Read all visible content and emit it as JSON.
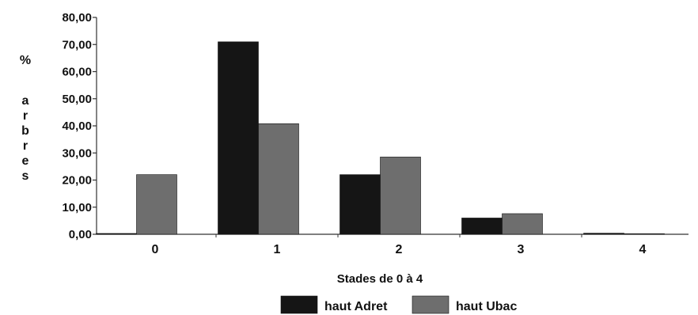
{
  "chart_data": {
    "type": "bar",
    "categories": [
      "0",
      "1",
      "2",
      "3",
      "4"
    ],
    "series": [
      {
        "name": "haut Adret",
        "values": [
          0.3,
          71.0,
          22.0,
          6.0,
          0.4
        ],
        "color": "#151515"
      },
      {
        "name": "haut Ubac",
        "values": [
          22.0,
          40.8,
          28.5,
          7.6,
          0.0
        ],
        "color": "#6e6e6e"
      }
    ],
    "ylim": [
      0,
      80
    ],
    "yticks": [
      "0,00",
      "10,00",
      "20,00",
      "30,00",
      "40,00",
      "50,00",
      "60,00",
      "70,00",
      "80,00"
    ],
    "ylabel": {
      "symbol": "%",
      "word": "arbres"
    },
    "xlabel": "Stades de 0 à 4",
    "legend_position": "bottom-center",
    "grid": false
  }
}
